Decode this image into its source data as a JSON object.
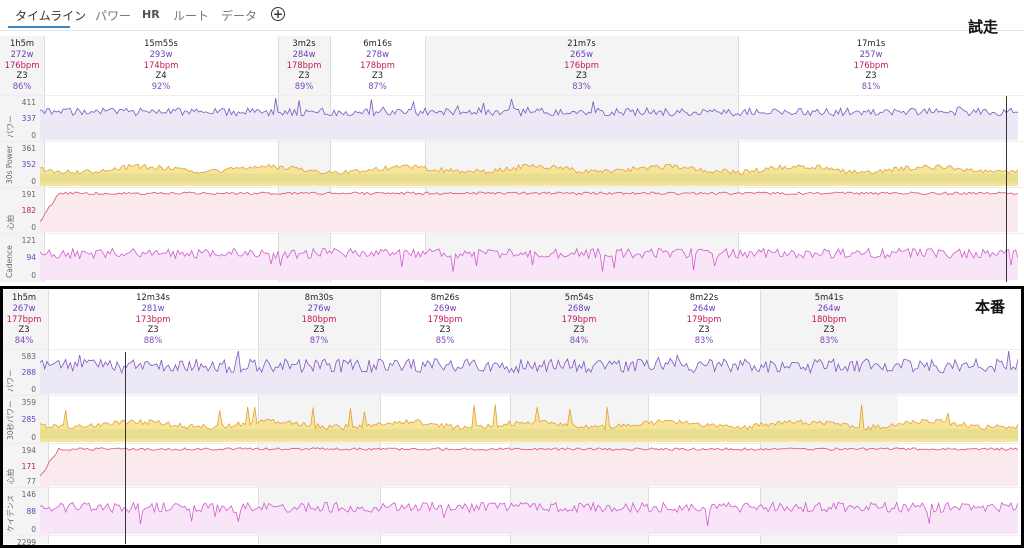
{
  "tabs": [
    {
      "label": "タイムライン",
      "active": true
    },
    {
      "label": "パワー"
    },
    {
      "label": "HR"
    },
    {
      "label": "ルート"
    },
    {
      "label": "データ"
    }
  ],
  "labels": {
    "trial": "試走",
    "race": "本番"
  },
  "trial": {
    "laps": [
      {
        "time": "1h5m",
        "power": "272w",
        "hr": "176bpm",
        "zone": "Z3",
        "pct": "86%"
      },
      {
        "time": "15m55s",
        "power": "293w",
        "hr": "174bpm",
        "zone": "Z4",
        "pct": "92%"
      },
      {
        "time": "3m2s",
        "power": "284w",
        "hr": "178bpm",
        "zone": "Z3",
        "pct": "89%"
      },
      {
        "time": "6m16s",
        "power": "278w",
        "hr": "178bpm",
        "zone": "Z3",
        "pct": "87%"
      },
      {
        "time": "21m7s",
        "power": "265w",
        "hr": "176bpm",
        "zone": "Z3",
        "pct": "83%"
      },
      {
        "time": "17m1s",
        "power": "257w",
        "hr": "176bpm",
        "zone": "Z3",
        "pct": "81%"
      }
    ],
    "tracks": [
      {
        "name": "パワー",
        "ticks": [
          "411",
          "337",
          "0"
        ],
        "tick_colors": [
          "gray",
          "purple",
          "gray"
        ]
      },
      {
        "name": "30s Power",
        "ticks": [
          "361",
          "352",
          "0"
        ],
        "tick_colors": [
          "gray",
          "purple",
          "gray"
        ]
      },
      {
        "name": "心拍",
        "ticks": [
          "191",
          "182",
          "0"
        ],
        "tick_colors": [
          "gray",
          "red",
          "gray"
        ]
      },
      {
        "name": "Cadence",
        "ticks": [
          "121",
          "94",
          "0"
        ],
        "tick_colors": [
          "gray",
          "purple",
          "gray"
        ]
      }
    ]
  },
  "race": {
    "laps": [
      {
        "time": "1h5m",
        "power": "267w",
        "hr": "177bpm",
        "zone": "Z3",
        "pct": "84%"
      },
      {
        "time": "12m34s",
        "power": "281w",
        "hr": "173bpm",
        "zone": "Z3",
        "pct": "88%"
      },
      {
        "time": "8m30s",
        "power": "276w",
        "hr": "180bpm",
        "zone": "Z3",
        "pct": "87%"
      },
      {
        "time": "8m26s",
        "power": "269w",
        "hr": "179bpm",
        "zone": "Z3",
        "pct": "85%"
      },
      {
        "time": "5m54s",
        "power": "268w",
        "hr": "179bpm",
        "zone": "Z3",
        "pct": "84%"
      },
      {
        "time": "8m22s",
        "power": "264w",
        "hr": "179bpm",
        "zone": "Z3",
        "pct": "83%"
      },
      {
        "time": "5m41s",
        "power": "264w",
        "hr": "180bpm",
        "zone": "Z3",
        "pct": "83%"
      }
    ],
    "tracks": [
      {
        "name": "パワー",
        "ticks": [
          "583",
          "288",
          "0"
        ],
        "tick_colors": [
          "gray",
          "purple",
          "gray"
        ]
      },
      {
        "name": "30秒パワー",
        "ticks": [
          "359",
          "285",
          "0"
        ],
        "tick_colors": [
          "gray",
          "purple",
          "gray"
        ]
      },
      {
        "name": "心拍",
        "ticks": [
          "194",
          "171",
          "77"
        ],
        "tick_colors": [
          "gray",
          "red",
          "gray"
        ]
      },
      {
        "name": "ケイデンス",
        "ticks": [
          "146",
          "88",
          "0"
        ],
        "tick_colors": [
          "gray",
          "purple",
          "gray"
        ]
      },
      {
        "name": "",
        "ticks": [
          "2299"
        ],
        "tick_colors": [
          "gray"
        ]
      }
    ]
  },
  "colors": {
    "power_line": "#7e57c2",
    "power_fill": "#ece8f6",
    "smooth_fill_top": "#f4a460",
    "smooth_fill_mid": "#f7e08a",
    "zone_band": "#8fd3b0",
    "hr_line": "#d9536f",
    "hr_fill": "#fbeaed",
    "cad_line": "#d35ad3",
    "cad_fill": "#f8e6f8",
    "tab_accent": "#3d86c6"
  }
}
